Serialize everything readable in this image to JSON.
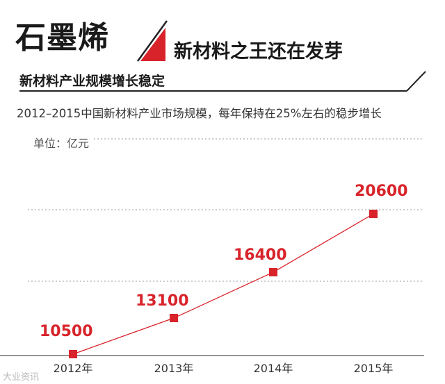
{
  "header": {
    "title": "石墨烯",
    "tagline": "新材料之王还在发芽"
  },
  "section": {
    "title": "新材料产业规模增长稳定"
  },
  "chart_data": {
    "type": "line",
    "title": "2012–2015中国新材料产业市场规模，每年保持在25%左右的稳步增长",
    "unit_label": "单位：亿元",
    "categories": [
      "2012年",
      "2013年",
      "2014年",
      "2015年"
    ],
    "values": [
      10500,
      13100,
      16400,
      20600
    ],
    "data_labels": [
      "10500",
      "13100",
      "16400",
      "20600"
    ],
    "ylim": [
      10000,
      25000
    ],
    "grid": true,
    "legend": "none",
    "colors": {
      "line": "#d8232a",
      "marker": "#d8232a",
      "label": "#d8232a",
      "grid": "#9a9a9a",
      "axis": "#555555"
    }
  },
  "watermark": "大业资讯"
}
